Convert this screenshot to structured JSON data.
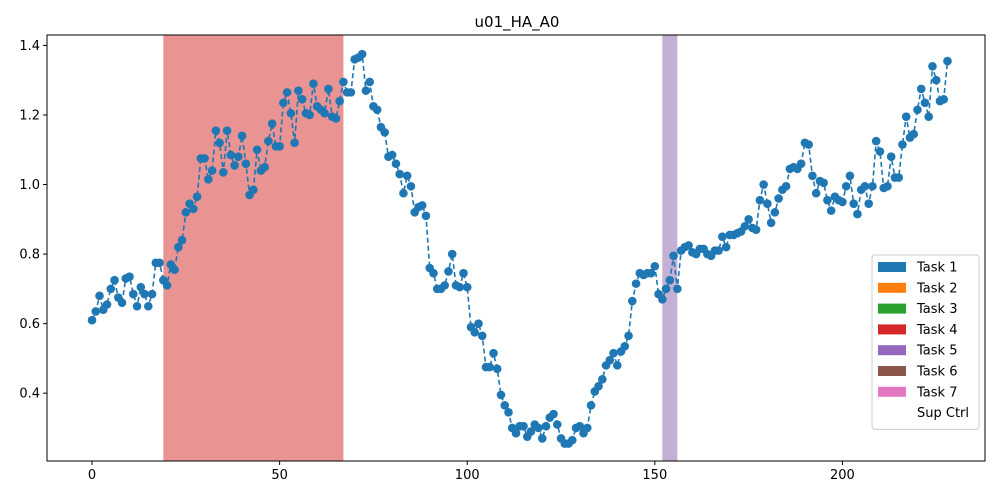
{
  "chart_data": {
    "type": "line",
    "title": "u01_HA_A0",
    "xlim": [
      -12,
      238
    ],
    "ylim": [
      0.205,
      1.43
    ],
    "x_ticks": [
      0,
      50,
      100,
      150,
      200
    ],
    "y_ticks": [
      0.4,
      0.6,
      0.8,
      1.0,
      1.2,
      1.4
    ],
    "y_tick_labels": [
      "0.4",
      "0.6",
      "0.8",
      "1.0",
      "1.2",
      "1.4"
    ],
    "grid": false,
    "legend_position": "lower-right",
    "series": [
      {
        "color": "#1f77b4",
        "line_style": "dashed",
        "marker": "circle",
        "x_start": 0,
        "x_step": 1,
        "values": [
          0.61,
          0.635,
          0.68,
          0.64,
          0.655,
          0.7,
          0.725,
          0.675,
          0.66,
          0.73,
          0.735,
          0.685,
          0.65,
          0.705,
          0.685,
          0.65,
          0.685,
          0.775,
          0.775,
          0.725,
          0.71,
          0.77,
          0.755,
          0.82,
          0.84,
          0.92,
          0.945,
          0.93,
          0.965,
          1.075,
          1.075,
          1.015,
          1.04,
          1.155,
          1.12,
          1.035,
          1.155,
          1.085,
          1.055,
          1.08,
          1.14,
          1.06,
          0.97,
          0.985,
          1.1,
          1.04,
          1.05,
          1.125,
          1.175,
          1.11,
          1.11,
          1.235,
          1.265,
          1.205,
          1.12,
          1.27,
          1.245,
          1.205,
          1.2,
          1.29,
          1.225,
          1.215,
          1.205,
          1.275,
          1.195,
          1.19,
          1.24,
          1.295,
          1.265,
          1.265,
          1.36,
          1.365,
          1.375,
          1.27,
          1.295,
          1.225,
          1.215,
          1.165,
          1.15,
          1.08,
          1.085,
          1.06,
          1.03,
          0.975,
          1.025,
          0.995,
          0.92,
          0.935,
          0.94,
          0.91,
          0.76,
          0.745,
          0.7,
          0.7,
          0.71,
          0.75,
          0.8,
          0.71,
          0.705,
          0.745,
          0.705,
          0.59,
          0.575,
          0.6,
          0.565,
          0.475,
          0.475,
          0.515,
          0.47,
          0.395,
          0.365,
          0.345,
          0.3,
          0.285,
          0.305,
          0.305,
          0.275,
          0.29,
          0.31,
          0.3,
          0.27,
          0.305,
          0.33,
          0.34,
          0.31,
          0.27,
          0.255,
          0.255,
          0.265,
          0.3,
          0.305,
          0.285,
          0.3,
          0.365,
          0.405,
          0.42,
          0.44,
          0.48,
          0.495,
          0.515,
          0.48,
          0.52,
          0.535,
          0.565,
          0.665,
          0.715,
          0.745,
          0.74,
          0.745,
          0.745,
          0.765,
          0.685,
          0.67,
          0.7,
          0.725,
          0.795,
          0.7,
          0.81,
          0.82,
          0.825,
          0.805,
          0.8,
          0.815,
          0.815,
          0.8,
          0.795,
          0.81,
          0.81,
          0.85,
          0.82,
          0.855,
          0.855,
          0.86,
          0.865,
          0.88,
          0.9,
          0.875,
          0.87,
          0.955,
          1.0,
          0.945,
          0.89,
          0.92,
          0.96,
          0.985,
          0.995,
          1.045,
          1.05,
          1.045,
          1.06,
          1.12,
          1.115,
          1.025,
          0.975,
          1.01,
          1.005,
          0.955,
          0.925,
          0.965,
          0.955,
          0.95,
          0.995,
          1.025,
          0.945,
          0.915,
          0.985,
          0.995,
          0.945,
          0.995,
          1.125,
          1.095,
          0.99,
          0.995,
          1.08,
          1.02,
          1.02,
          1.115,
          1.195,
          1.135,
          1.145,
          1.215,
          1.275,
          1.235,
          1.195,
          1.34,
          1.3,
          1.24,
          1.245,
          1.355
        ]
      }
    ],
    "shaded_regions": [
      {
        "x_start": 19,
        "x_end": 67,
        "color": "#e99393",
        "label": "Task 4"
      },
      {
        "x_start": 152,
        "x_end": 156,
        "color": "#c5b0d5",
        "label": "Task 5"
      }
    ],
    "legend": [
      {
        "label": "Task 1",
        "color": "#1f77b4"
      },
      {
        "label": "Task 2",
        "color": "#ff7f0e"
      },
      {
        "label": "Task 3",
        "color": "#2ca02c"
      },
      {
        "label": "Task 4",
        "color": "#d62728"
      },
      {
        "label": "Task 5",
        "color": "#9467bd"
      },
      {
        "label": "Task 6",
        "color": "#8c564b"
      },
      {
        "label": "Task 7",
        "color": "#e377c2"
      },
      {
        "label": "Sup Ctrl",
        "color": "#ffffff"
      }
    ]
  }
}
